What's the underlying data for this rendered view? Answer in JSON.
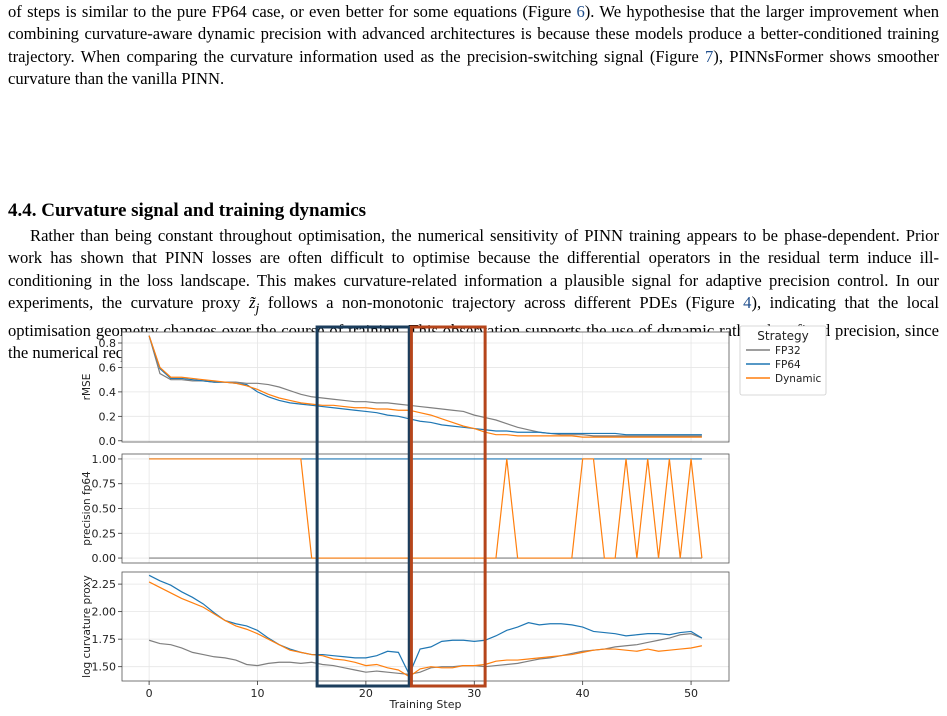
{
  "para1": {
    "a": "of steps is similar to the pure FP64 case, or even better for some equations (Figure ",
    "ref1": "6",
    "b": "). We hypothesise that the larger improvement when combining curvature-aware dynamic precision with advanced architectures is because these models produce a better-conditioned training trajectory. When comparing the curvature information used as the precision-switching signal (Figure ",
    "ref2": "7",
    "c": "), PINNsFormer shows smoother curvature than the vanilla PINN."
  },
  "section": {
    "heading": "4.4. Curvature signal and training dynamics",
    "a": "Rather than being constant throughout optimisation, the numerical sensitivity of PINN training appears to be phase-dependent. Prior work has shown that PINN losses are often difficult to optimise because the differential operators in the residual term induce ill-conditioning in the loss landscape. This makes curvature-related information a plausible signal for adaptive precision control. In our experiments, the curvature proxy ",
    "symbol": "z̃",
    "subscript": "j",
    "b": " follows a non-monotonic trajectory across different PDEs (Figure ",
    "ref": "4",
    "c": "), indicating that the local optimisation geometry changes over the course of training. This observation supports the use of dynamic rather than fixed precision, since the numerical requirements of training are not uniform across all iterations."
  },
  "chart_data": {
    "type": "line",
    "xlabel": "Training Step",
    "xlim": [
      -2.5,
      53.5
    ],
    "x_ticks": [
      "0",
      "10",
      "20",
      "30",
      "40",
      "50"
    ],
    "x_tick_values": [
      0,
      10,
      20,
      30,
      40,
      50
    ],
    "grid": true,
    "legend": {
      "title": "Strategy",
      "placement": "right",
      "entries": [
        "FP32",
        "FP64",
        "Dynamic"
      ]
    },
    "colors": {
      "FP32": "#7f7f7f",
      "FP64": "#1f77b4",
      "Dynamic": "#ff7f0e"
    },
    "highlight_regions": [
      {
        "x_range": [
          15.5,
          24
        ],
        "color": "#1b3d5c"
      },
      {
        "x_range": [
          24.2,
          31
        ],
        "color": "#b5451b"
      }
    ],
    "x": [
      0,
      1,
      2,
      3,
      4,
      5,
      6,
      7,
      8,
      9,
      10,
      11,
      12,
      13,
      14,
      15,
      16,
      17,
      18,
      19,
      20,
      21,
      22,
      23,
      24,
      25,
      26,
      27,
      28,
      29,
      30,
      31,
      32,
      33,
      34,
      35,
      36,
      37,
      38,
      39,
      40,
      41,
      42,
      43,
      44,
      45,
      46,
      47,
      48,
      49,
      50,
      51
    ],
    "panels": [
      {
        "ylabel": "rMSE",
        "ylim": [
          -0.01,
          0.89
        ],
        "y_ticks": [
          "0.0",
          "0.2",
          "0.4",
          "0.6",
          "0.8"
        ],
        "y_tick_values": [
          0.0,
          0.2,
          0.4,
          0.6,
          0.8
        ],
        "series": [
          {
            "name": "FP32",
            "values": [
              0.86,
              0.55,
              0.5,
              0.5,
              0.49,
              0.49,
              0.48,
              0.48,
              0.48,
              0.47,
              0.47,
              0.46,
              0.44,
              0.41,
              0.38,
              0.36,
              0.35,
              0.34,
              0.33,
              0.32,
              0.32,
              0.31,
              0.31,
              0.3,
              0.29,
              0.28,
              0.27,
              0.26,
              0.25,
              0.24,
              0.21,
              0.19,
              0.17,
              0.14,
              0.11,
              0.09,
              0.07,
              0.06,
              0.05,
              0.05,
              0.05,
              0.04,
              0.04,
              0.04,
              0.04,
              0.04,
              0.04,
              0.04,
              0.04,
              0.04,
              0.04,
              0.04
            ]
          },
          {
            "name": "FP64",
            "values": [
              0.86,
              0.59,
              0.51,
              0.51,
              0.5,
              0.49,
              0.48,
              0.48,
              0.47,
              0.46,
              0.4,
              0.36,
              0.33,
              0.31,
              0.3,
              0.29,
              0.28,
              0.27,
              0.26,
              0.25,
              0.24,
              0.23,
              0.21,
              0.2,
              0.18,
              0.16,
              0.15,
              0.13,
              0.12,
              0.11,
              0.1,
              0.09,
              0.08,
              0.08,
              0.07,
              0.07,
              0.07,
              0.06,
              0.06,
              0.06,
              0.06,
              0.06,
              0.06,
              0.06,
              0.05,
              0.05,
              0.05,
              0.05,
              0.05,
              0.05,
              0.05,
              0.05
            ]
          },
          {
            "name": "Dynamic",
            "values": [
              0.86,
              0.6,
              0.52,
              0.52,
              0.51,
              0.5,
              0.49,
              0.48,
              0.47,
              0.45,
              0.42,
              0.38,
              0.35,
              0.33,
              0.31,
              0.3,
              0.29,
              0.29,
              0.28,
              0.27,
              0.27,
              0.26,
              0.26,
              0.25,
              0.25,
              0.23,
              0.21,
              0.18,
              0.15,
              0.12,
              0.1,
              0.07,
              0.05,
              0.05,
              0.04,
              0.04,
              0.04,
              0.04,
              0.04,
              0.04,
              0.03,
              0.03,
              0.03,
              0.03,
              0.03,
              0.03,
              0.03,
              0.03,
              0.03,
              0.03,
              0.03,
              0.03
            ]
          }
        ]
      },
      {
        "ylabel": "precision fp64",
        "ylim": [
          -0.05,
          1.05
        ],
        "y_ticks": [
          "0.00",
          "0.25",
          "0.50",
          "0.75",
          "1.00"
        ],
        "y_tick_values": [
          0.0,
          0.25,
          0.5,
          0.75,
          1.0
        ],
        "series": [
          {
            "name": "FP32",
            "values": [
              0,
              0,
              0,
              0,
              0,
              0,
              0,
              0,
              0,
              0,
              0,
              0,
              0,
              0,
              0,
              0,
              0,
              0,
              0,
              0,
              0,
              0,
              0,
              0,
              0,
              0,
              0,
              0,
              0,
              0,
              0,
              0,
              0,
              0,
              0,
              0,
              0,
              0,
              0,
              0,
              0,
              0,
              0,
              0,
              0,
              0,
              0,
              0,
              0,
              0,
              0,
              0
            ]
          },
          {
            "name": "FP64",
            "values": [
              1,
              1,
              1,
              1,
              1,
              1,
              1,
              1,
              1,
              1,
              1,
              1,
              1,
              1,
              1,
              1,
              1,
              1,
              1,
              1,
              1,
              1,
              1,
              1,
              1,
              1,
              1,
              1,
              1,
              1,
              1,
              1,
              1,
              1,
              1,
              1,
              1,
              1,
              1,
              1,
              1,
              1,
              1,
              1,
              1,
              1,
              1,
              1,
              1,
              1,
              1,
              1
            ]
          },
          {
            "name": "Dynamic",
            "values": [
              1,
              1,
              1,
              1,
              1,
              1,
              1,
              1,
              1,
              1,
              1,
              1,
              1,
              1,
              1,
              0,
              0,
              0,
              0,
              0,
              0,
              0,
              0,
              0,
              0,
              0,
              0,
              0,
              0,
              0,
              0,
              0,
              0,
              1,
              0,
              0,
              0,
              0,
              0,
              0,
              1,
              1,
              0,
              0,
              1,
              0,
              1,
              0,
              1,
              0,
              1,
              0
            ]
          }
        ]
      },
      {
        "ylabel": "log curvature proxy",
        "ylim": [
          1.37,
          2.36
        ],
        "y_ticks": [
          "1.50",
          "1.75",
          "2.00",
          "2.25"
        ],
        "y_tick_values": [
          1.5,
          1.75,
          2.0,
          2.25
        ],
        "series": [
          {
            "name": "FP32",
            "values": [
              1.74,
              1.71,
              1.7,
              1.67,
              1.63,
              1.61,
              1.59,
              1.58,
              1.56,
              1.52,
              1.51,
              1.53,
              1.54,
              1.54,
              1.53,
              1.54,
              1.52,
              1.51,
              1.49,
              1.47,
              1.45,
              1.46,
              1.45,
              1.44,
              1.43,
              1.45,
              1.49,
              1.5,
              1.5,
              1.51,
              1.51,
              1.5,
              1.51,
              1.52,
              1.53,
              1.55,
              1.57,
              1.58,
              1.6,
              1.62,
              1.64,
              1.65,
              1.66,
              1.68,
              1.69,
              1.7,
              1.72,
              1.74,
              1.76,
              1.79,
              1.8,
              1.76
            ]
          },
          {
            "name": "FP64",
            "values": [
              2.33,
              2.28,
              2.24,
              2.18,
              2.13,
              2.07,
              1.99,
              1.92,
              1.89,
              1.87,
              1.83,
              1.76,
              1.7,
              1.66,
              1.63,
              1.61,
              1.61,
              1.6,
              1.59,
              1.58,
              1.58,
              1.6,
              1.64,
              1.63,
              1.43,
              1.66,
              1.68,
              1.73,
              1.74,
              1.74,
              1.73,
              1.74,
              1.78,
              1.83,
              1.86,
              1.9,
              1.88,
              1.89,
              1.89,
              1.88,
              1.86,
              1.82,
              1.81,
              1.8,
              1.78,
              1.79,
              1.8,
              1.8,
              1.79,
              1.81,
              1.82,
              1.76
            ]
          },
          {
            "name": "Dynamic",
            "values": [
              2.27,
              2.22,
              2.17,
              2.12,
              2.08,
              2.04,
              1.98,
              1.92,
              1.87,
              1.84,
              1.8,
              1.75,
              1.7,
              1.65,
              1.63,
              1.61,
              1.6,
              1.57,
              1.56,
              1.54,
              1.51,
              1.52,
              1.49,
              1.47,
              1.41,
              1.48,
              1.5,
              1.49,
              1.49,
              1.51,
              1.51,
              1.52,
              1.55,
              1.56,
              1.56,
              1.57,
              1.58,
              1.59,
              1.6,
              1.61,
              1.63,
              1.65,
              1.66,
              1.66,
              1.65,
              1.64,
              1.66,
              1.64,
              1.65,
              1.66,
              1.67,
              1.69
            ]
          }
        ]
      }
    ]
  }
}
